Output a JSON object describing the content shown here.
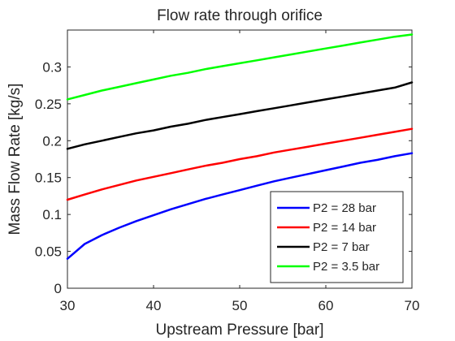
{
  "chart_data": {
    "type": "line",
    "title": "Flow rate through orifice",
    "xlabel": "Upstream Pressure [bar]",
    "ylabel": "Mass Flow Rate [kg/s]",
    "xlim": [
      30,
      70
    ],
    "ylim": [
      0,
      0.35
    ],
    "xticks": [
      30,
      40,
      50,
      60,
      70
    ],
    "xtick_labels": [
      "30",
      "40",
      "50",
      "60",
      "70"
    ],
    "yticks": [
      0,
      0.05,
      0.1,
      0.15,
      0.2,
      0.25,
      0.3
    ],
    "ytick_labels": [
      "0",
      "0.05",
      "0.1",
      "0.15",
      "0.2",
      "0.25",
      "0.3"
    ],
    "grid": false,
    "legend_position": "bottom-right",
    "x": [
      30,
      32,
      34,
      36,
      38,
      40,
      42,
      44,
      46,
      48,
      50,
      52,
      54,
      56,
      58,
      60,
      62,
      64,
      66,
      68,
      70
    ],
    "series": [
      {
        "name": "P2 = 28 bar",
        "color": "#0000ff",
        "values": [
          0.04,
          0.06,
          0.072,
          0.082,
          0.091,
          0.099,
          0.107,
          0.114,
          0.121,
          0.127,
          0.133,
          0.139,
          0.145,
          0.15,
          0.155,
          0.16,
          0.165,
          0.17,
          0.174,
          0.179,
          0.183
        ]
      },
      {
        "name": "P2 = 14 bar",
        "color": "#ff0000",
        "values": [
          0.12,
          0.127,
          0.134,
          0.14,
          0.146,
          0.151,
          0.156,
          0.161,
          0.166,
          0.17,
          0.175,
          0.179,
          0.184,
          0.188,
          0.192,
          0.196,
          0.2,
          0.204,
          0.208,
          0.212,
          0.216
        ]
      },
      {
        "name": "P2 = 7 bar",
        "color": "#000000",
        "values": [
          0.189,
          0.195,
          0.2,
          0.205,
          0.21,
          0.214,
          0.219,
          0.223,
          0.228,
          0.232,
          0.236,
          0.24,
          0.244,
          0.248,
          0.252,
          0.256,
          0.26,
          0.264,
          0.268,
          0.272,
          0.279
        ]
      },
      {
        "name": "P2 = 3.5 bar",
        "color": "#00ff00",
        "values": [
          0.256,
          0.262,
          0.268,
          0.273,
          0.278,
          0.283,
          0.288,
          0.292,
          0.297,
          0.301,
          0.305,
          0.309,
          0.313,
          0.317,
          0.321,
          0.325,
          0.329,
          0.333,
          0.337,
          0.341,
          0.344
        ]
      }
    ]
  }
}
